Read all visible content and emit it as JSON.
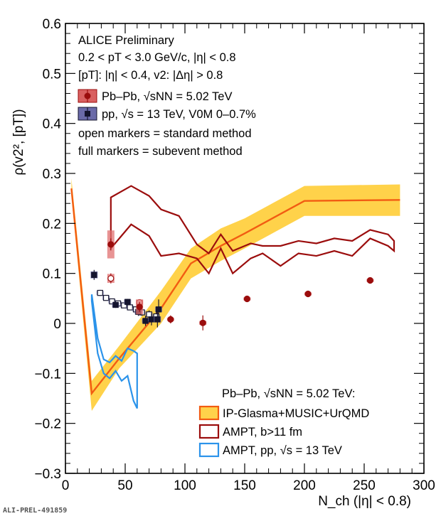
{
  "chart_data": {
    "type": "scatter",
    "xlabel": "N_ch (|η| < 0.8)",
    "ylabel": "ρ(v2², [pT])",
    "xlim": [
      0,
      300
    ],
    "ylim": [
      -0.3,
      0.6
    ],
    "x_ticks": [
      "0",
      "50",
      "100",
      "150",
      "200",
      "250",
      "300"
    ],
    "y_ticks": [
      "−0.3",
      "−0.2",
      "−0.1",
      "0",
      "0.1",
      "0.2",
      "0.3",
      "0.4",
      "0.5",
      "0.6"
    ],
    "header": {
      "line1": "ALICE Preliminary",
      "line2": "0.2 < pT < 3.0 GeV/c, |η| < 0.8",
      "line3": "[pT]: |η| < 0.4, v2: |Δη| > 0.8",
      "line4": "Pb–Pb, √sNN = 5.02 TeV",
      "line5": "pp, √s = 13 TeV, V0M 0–0.7%",
      "line6": "open markers = standard method",
      "line7": "full markers = subevent method"
    },
    "model_header": "Pb–Pb, √sNN = 5.02 TeV:",
    "footer": "ALI-PREL-491859",
    "colors": {
      "pbpb": "#9b0d0d",
      "pp": "#14142e",
      "ipglasma_line": "#f25c12",
      "ipglasma_band": "#ffd24a",
      "ampt_pbpb": "#9b0d0d",
      "ampt_pp": "#2b93ea"
    },
    "series": [
      {
        "name": "Pb–Pb, √sNN = 5.02 TeV (full markers)",
        "points": [
          {
            "x": 38,
            "y": 0.158,
            "err": 0.012,
            "sys": 0.028
          },
          {
            "x": 62,
            "y": 0.033,
            "err": 0.01,
            "sys": 0.015
          },
          {
            "x": 88,
            "y": 0.008,
            "err": 0.008,
            "sys": 0.003
          },
          {
            "x": 115,
            "y": 0.001,
            "err": 0.015,
            "sys": 0.004
          },
          {
            "x": 152,
            "y": 0.049,
            "err": 0.005,
            "sys": 0.003
          },
          {
            "x": 203,
            "y": 0.059,
            "err": 0.004,
            "sys": 0.003
          },
          {
            "x": 255,
            "y": 0.086,
            "err": 0.004,
            "sys": 0.003
          }
        ]
      },
      {
        "name": "Pb–Pb, √sNN = 5.02 TeV (open markers)",
        "points": [
          {
            "x": 38,
            "y": 0.09,
            "err": 0.01,
            "sys": 0.009
          },
          {
            "x": 62,
            "y": 0.042,
            "err": 0.006,
            "sys": 0.005
          }
        ]
      },
      {
        "name": "pp, √s = 13 TeV, V0M 0–0.7% (full markers)",
        "points": [
          {
            "x": 24,
            "y": 0.097,
            "err": 0.01,
            "sys": 0.007
          },
          {
            "x": 42,
            "y": 0.037,
            "err": 0.006,
            "sys": 0.005
          },
          {
            "x": 52,
            "y": 0.043,
            "err": 0.006,
            "sys": 0.005
          },
          {
            "x": 61,
            "y": 0.023,
            "err": 0.008,
            "sys": 0.005
          },
          {
            "x": 67,
            "y": 0.005,
            "err": 0.01,
            "sys": 0.004
          },
          {
            "x": 72,
            "y": 0.008,
            "err": 0.012,
            "sys": 0.004
          },
          {
            "x": 77,
            "y": 0.008,
            "err": 0.016,
            "sys": 0.006
          },
          {
            "x": 78,
            "y": 0.028,
            "err": 0.02,
            "sys": 0.005
          }
        ]
      },
      {
        "name": "pp, √s = 13 TeV, V0M 0–0.7% (open markers)",
        "points": [
          {
            "x": 29,
            "y": 0.061,
            "err": 0.006,
            "sys": 0.004
          },
          {
            "x": 34,
            "y": 0.051,
            "err": 0.005,
            "sys": 0.004
          },
          {
            "x": 39,
            "y": 0.044,
            "err": 0.005,
            "sys": 0.004
          },
          {
            "x": 44,
            "y": 0.04,
            "err": 0.005,
            "sys": 0.004
          },
          {
            "x": 49,
            "y": 0.036,
            "err": 0.005,
            "sys": 0.004
          },
          {
            "x": 54,
            "y": 0.032,
            "err": 0.005,
            "sys": 0.004
          },
          {
            "x": 59,
            "y": 0.028,
            "err": 0.006,
            "sys": 0.004
          },
          {
            "x": 64,
            "y": 0.022,
            "err": 0.007,
            "sys": 0.004
          },
          {
            "x": 70,
            "y": 0.018,
            "err": 0.008,
            "sys": 0.004
          },
          {
            "x": 76,
            "y": 0.014,
            "err": 0.01,
            "sys": 0.004
          }
        ]
      },
      {
        "name": "IP-Glasma+MUSIC+UrQMD",
        "x": [
          5,
          22,
          45,
          80,
          105,
          130,
          150,
          200,
          280
        ],
        "y": [
          0.27,
          -0.14,
          -0.07,
          0.03,
          0.12,
          0.155,
          0.18,
          0.245,
          0.247
        ],
        "y_low": [
          0.255,
          -0.175,
          -0.09,
          0.0,
          0.09,
          0.125,
          0.15,
          0.215,
          0.215
        ],
        "y_high": [
          0.29,
          -0.115,
          -0.045,
          0.065,
          0.15,
          0.19,
          0.21,
          0.275,
          0.278
        ]
      },
      {
        "name": "AMPT, b>11 fm",
        "x": [
          38,
          55,
          70,
          80,
          95,
          110,
          120,
          130,
          140,
          155,
          165,
          180,
          195,
          210,
          225,
          240,
          255,
          270,
          275
        ],
        "y_high": [
          0.252,
          0.275,
          0.255,
          0.228,
          0.215,
          0.158,
          0.14,
          0.178,
          0.145,
          0.16,
          0.155,
          0.155,
          0.165,
          0.16,
          0.17,
          0.165,
          0.187,
          0.178,
          0.165
        ],
        "y_low": [
          0.15,
          0.198,
          0.175,
          0.135,
          0.14,
          0.13,
          0.1,
          0.15,
          0.1,
          0.13,
          0.14,
          0.115,
          0.14,
          0.135,
          0.145,
          0.135,
          0.17,
          0.155,
          0.145
        ]
      },
      {
        "name": "AMPT, pp, √s = 13 TeV",
        "x": [
          22,
          27,
          32,
          37,
          42,
          47,
          52,
          57,
          60
        ],
        "y_high": [
          0.058,
          -0.03,
          -0.072,
          -0.078,
          -0.065,
          -0.075,
          -0.05,
          -0.055,
          -0.06
        ],
        "y_low": [
          0.045,
          -0.06,
          -0.1,
          -0.11,
          -0.095,
          -0.115,
          -0.105,
          -0.155,
          -0.17
        ]
      }
    ]
  }
}
